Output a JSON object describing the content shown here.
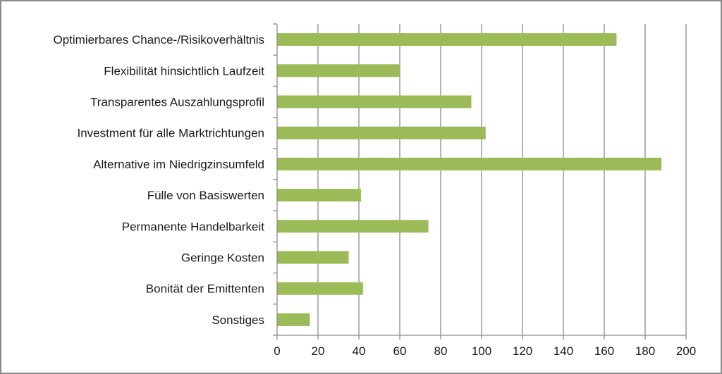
{
  "chart_data": {
    "type": "bar",
    "orientation": "horizontal",
    "title": "",
    "xlabel": "",
    "ylabel": "",
    "categories": [
      "Optimierbares Chance-/Risikoverhältnis",
      "Flexibilität hinsichtlich Laufzeit",
      "Transparentes Auszahlungsprofil",
      "Investment für alle Marktrichtungen",
      "Alternative im Niedrigzinsumfeld",
      "Fülle von Basiswerten",
      "Permanente Handelbarkeit",
      "Geringe Kosten",
      "Bonität der Emittenten",
      "Sonstiges"
    ],
    "values": [
      166,
      60,
      95,
      102,
      188,
      41,
      74,
      35,
      42,
      16
    ],
    "xlim": [
      0,
      200
    ],
    "xticks": [
      "0",
      "20",
      "40",
      "60",
      "80",
      "100",
      "120",
      "140",
      "160",
      "180",
      "200"
    ],
    "grid": true,
    "legend": "none",
    "colors": {
      "bar": "#9bbb59",
      "grid": "#8c8c8c",
      "axis": "#8c8c8c",
      "border": "#8c8c8c"
    }
  }
}
